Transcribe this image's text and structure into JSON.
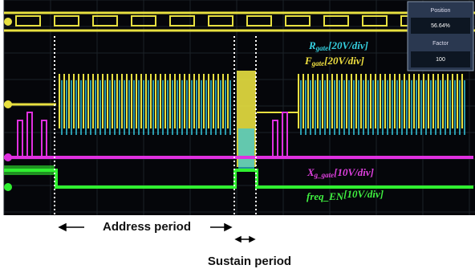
{
  "panel": {
    "position_label": "Position",
    "position_value": "56.64%",
    "factor_label": "Factor",
    "factor_value": "100"
  },
  "traces": [
    {
      "name": "R",
      "sub": "gate",
      "scale": "[20V/div]"
    },
    {
      "name": "F",
      "sub": "gate",
      "scale": "[20V/div]"
    },
    {
      "name": "X",
      "sub": "g_gate",
      "scale": "[10V/div]"
    },
    {
      "name": "freq_EN",
      "sub": "",
      "scale": "[10V/div]"
    }
  ],
  "annotations": {
    "address": "Address period",
    "sustain": "Sustain period"
  }
}
